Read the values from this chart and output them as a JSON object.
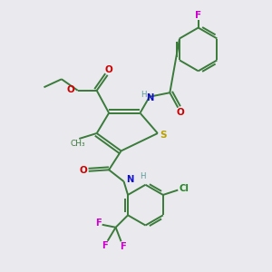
{
  "bg_color": "#eaeaee",
  "bond_color": "#3a7a3a",
  "atom_colors": {
    "C": "#3a7a3a",
    "H": "#5a9a9a",
    "N": "#1010cc",
    "O": "#cc0000",
    "S": "#b8a000",
    "F": "#cc00cc",
    "Cl": "#228822"
  },
  "lw": 1.4
}
